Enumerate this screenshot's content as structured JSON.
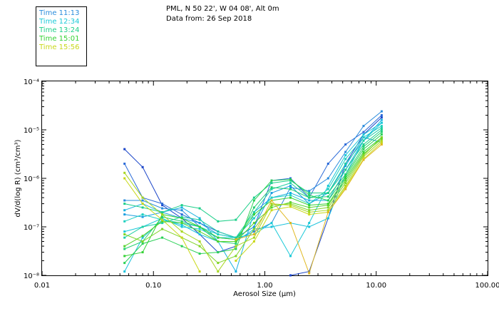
{
  "header": {
    "line1": "PML, N 50 22', W 04 08', Alt 0m",
    "line2": "Data from: 26 Sep 2018"
  },
  "chart_data": {
    "type": "line",
    "x_scale": "log",
    "y_scale": "log",
    "xlabel": "Aerosol Size (µm)",
    "ylabel": "dV/d(log R) (cm³/cm³)",
    "xlim": [
      0.01,
      100
    ],
    "ylim": [
      1e-08,
      0.0001
    ],
    "x_tick_values": [
      0.01,
      0.1,
      1,
      10,
      100
    ],
    "x_tick_labels": [
      "0.01",
      "0.10",
      "1.00",
      "10.00",
      "100.00"
    ],
    "y_tick_values": [
      1e-08,
      1e-07,
      1e-06,
      1e-05,
      0.0001
    ],
    "y_tick_labels": [
      "10⁻⁸",
      "10⁻⁷",
      "10⁻⁶",
      "10⁻⁵",
      "10⁻⁴"
    ],
    "size_bins": [
      0.055,
      0.08,
      0.12,
      0.18,
      0.26,
      0.38,
      0.55,
      0.8,
      1.15,
      1.7,
      2.5,
      3.7,
      5.3,
      7.7,
      11.2
    ],
    "legend": [
      {
        "label": "Time 11:13",
        "color": "#2a8cdc"
      },
      {
        "label": "Time 12:34",
        "color": "#1bc9d8"
      },
      {
        "label": "Time 13:24",
        "color": "#1fcf8a"
      },
      {
        "label": "Time 15:01",
        "color": "#35d235"
      },
      {
        "label": "Time 15:56",
        "color": "#c9d81a"
      }
    ],
    "series": [
      {
        "name": "s01",
        "color": "#1a44c8",
        "values": [
          4e-06,
          1.7e-06,
          2.8e-07,
          1.5e-07,
          7e-08,
          3e-08,
          4e-08,
          null,
          null,
          1e-08,
          1.2e-08,
          1.5e-07,
          2e-06,
          8e-06,
          1.8e-05
        ]
      },
      {
        "name": "s02",
        "color": "#2a6ad8",
        "values": [
          2e-06,
          4e-07,
          3e-07,
          1.8e-07,
          1.2e-07,
          8e-08,
          6e-08,
          1e-07,
          9e-07,
          1e-06,
          4e-07,
          2e-06,
          5e-06,
          9e-06,
          2e-05
        ]
      },
      {
        "name": "s03",
        "color": "#2a8cdc",
        "values": [
          3.5e-07,
          3.5e-07,
          2.4e-07,
          2.2e-07,
          1e-07,
          6e-08,
          5.5e-08,
          8e-08,
          1.2e-07,
          6.5e-07,
          5.5e-07,
          1e-06,
          3.5e-06,
          1.2e-05,
          2.4e-05
        ]
      },
      {
        "name": "s04",
        "color": "#1a9ee0",
        "values": [
          1.8e-07,
          1.6e-07,
          2e-07,
          1.5e-07,
          1.2e-07,
          7e-08,
          6e-08,
          1e-07,
          5e-07,
          7e-07,
          3e-07,
          5e-07,
          1.8e-06,
          7e-06,
          5.5e-06
        ]
      },
      {
        "name": "s05",
        "color": "#18b2e0",
        "values": [
          2.2e-07,
          3e-07,
          2e-07,
          2.5e-07,
          1.5e-07,
          5e-08,
          1.2e-08,
          2e-07,
          4e-07,
          5e-07,
          3.5e-07,
          3.5e-07,
          1.5e-06,
          6e-06,
          1.6e-05
        ]
      },
      {
        "name": "s06",
        "color": "#1bc2dc",
        "values": [
          1.2e-08,
          6e-08,
          1.4e-07,
          1.1e-07,
          7e-08,
          5e-08,
          5e-08,
          9e-08,
          1e-07,
          1.2e-07,
          1e-07,
          1.5e-07,
          1.2e-06,
          6e-06,
          1.4e-05
        ]
      },
      {
        "name": "s07",
        "color": "#1bc9d8",
        "values": [
          8e-08,
          1e-07,
          1.5e-07,
          1e-07,
          9e-08,
          6e-08,
          6e-08,
          7e-08,
          1.2e-07,
          2.5e-08,
          1.2e-07,
          7e-07,
          3e-06,
          8e-06,
          1.4e-05
        ]
      },
      {
        "name": "s08",
        "color": "#1fd0c0",
        "values": [
          1.3e-07,
          1.8e-07,
          1.4e-07,
          1.2e-07,
          1e-07,
          7e-08,
          6e-08,
          1.5e-07,
          4e-07,
          4.5e-07,
          3e-07,
          6e-07,
          2.5e-06,
          7e-06,
          1.2e-05
        ]
      },
      {
        "name": "s09",
        "color": "#1fcfa5",
        "values": [
          6e-08,
          1e-07,
          1.2e-07,
          1.6e-07,
          1.4e-07,
          8e-08,
          6e-08,
          2e-07,
          6e-07,
          8e-07,
          4e-07,
          5e-07,
          2e-06,
          6e-06,
          1.1e-05
        ]
      },
      {
        "name": "s10",
        "color": "#1fcf8a",
        "values": [
          3e-07,
          2.5e-07,
          2e-07,
          2.8e-07,
          2.4e-07,
          1.3e-07,
          1.4e-07,
          4e-07,
          8e-07,
          9e-07,
          5e-07,
          5e-07,
          1.5e-06,
          5e-06,
          1e-05
        ]
      },
      {
        "name": "s11",
        "color": "#22d070",
        "values": [
          3.5e-08,
          5e-08,
          1.6e-07,
          1.3e-07,
          1e-07,
          5e-08,
          4.5e-08,
          2.5e-07,
          6.5e-07,
          6e-07,
          4e-07,
          4.2e-07,
          1.2e-06,
          4.5e-06,
          9e-06
        ]
      },
      {
        "name": "s12",
        "color": "#2ad155",
        "values": [
          1.8e-08,
          4.5e-08,
          6e-08,
          4e-08,
          2.8e-08,
          3e-08,
          3.5e-08,
          3.5e-07,
          9e-07,
          9.5e-07,
          4.5e-07,
          3.5e-07,
          1.1e-06,
          4e-06,
          8e-06
        ]
      },
      {
        "name": "s13",
        "color": "#35d235",
        "values": [
          2.5e-08,
          3e-08,
          1.8e-07,
          1.5e-07,
          1e-07,
          6e-08,
          5.5e-08,
          1.8e-07,
          3.5e-07,
          4e-07,
          2.8e-07,
          3e-07,
          1e-06,
          3.5e-06,
          7e-06
        ]
      },
      {
        "name": "s14",
        "color": "#55d32c",
        "values": [
          4e-08,
          6.5e-08,
          1.3e-07,
          1.2e-07,
          8e-08,
          5e-08,
          5e-08,
          1.2e-07,
          2.5e-07,
          3.2e-07,
          2.5e-07,
          2.8e-07,
          9e-07,
          3.2e-06,
          6.5e-06
        ]
      },
      {
        "name": "s15",
        "color": "#80d426",
        "values": [
          7e-08,
          5e-08,
          9e-08,
          6e-08,
          4e-08,
          1.8e-08,
          2.5e-08,
          9e-08,
          2.8e-07,
          3e-07,
          2.2e-07,
          2.5e-07,
          8e-07,
          3e-06,
          7e-06
        ]
      },
      {
        "name": "s16",
        "color": "#a6d620",
        "values": [
          1.3e-06,
          4e-07,
          1.8e-07,
          8e-08,
          5e-08,
          1.2e-08,
          4e-08,
          6e-08,
          3e-07,
          2.8e-07,
          2e-07,
          2.2e-07,
          7e-07,
          2.8e-06,
          6e-06
        ]
      },
      {
        "name": "s17",
        "color": "#c9d81a",
        "values": [
          1e-06,
          3e-07,
          1.4e-07,
          6e-08,
          1.2e-08,
          null,
          2e-08,
          5e-08,
          2.2e-07,
          2.6e-07,
          1.8e-07,
          2e-07,
          6.5e-07,
          2.5e-06,
          5.5e-06
        ]
      },
      {
        "name": "s18",
        "color": "#e0b820",
        "values": [
          null,
          null,
          null,
          null,
          null,
          null,
          5.5e-08,
          7e-08,
          3.5e-07,
          1.2e-07,
          1.1e-08,
          2e-07,
          6e-07,
          2.4e-06,
          5e-06
        ]
      }
    ]
  }
}
